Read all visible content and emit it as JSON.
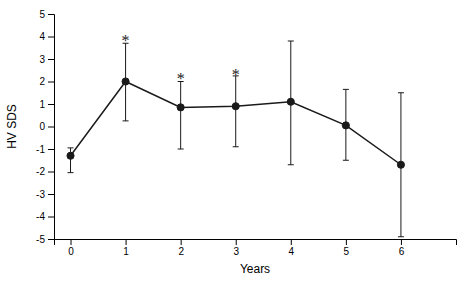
{
  "chart_data": {
    "type": "line",
    "x": [
      0,
      1,
      2,
      3,
      4,
      5,
      6
    ],
    "values": [
      -1.3,
      2.0,
      0.85,
      0.9,
      1.1,
      0.05,
      -1.7
    ],
    "errors_lower": [
      0.75,
      1.75,
      1.85,
      1.8,
      2.8,
      1.55,
      3.2
    ],
    "errors_upper": [
      0.35,
      1.7,
      1.15,
      1.35,
      2.7,
      1.6,
      3.2
    ],
    "color": "#1a1a1a",
    "marker": "circle",
    "annotations": [
      {
        "text": "*",
        "x": 1,
        "y": 3.9
      },
      {
        "text": "*",
        "x": 2,
        "y": 2.2
      },
      {
        "text": "*",
        "x": 3,
        "y": 2.4
      }
    ],
    "xlabel": "Years",
    "ylabel": "HV SDS",
    "xlim": [
      -0.3,
      7.0
    ],
    "ylim": [
      -5,
      5
    ],
    "xticks": [
      0,
      1,
      2,
      3,
      4,
      5,
      6
    ],
    "yticks": [
      -5,
      -4,
      -3,
      -2,
      -1,
      0,
      1,
      2,
      3,
      4,
      5
    ],
    "grid": false
  }
}
